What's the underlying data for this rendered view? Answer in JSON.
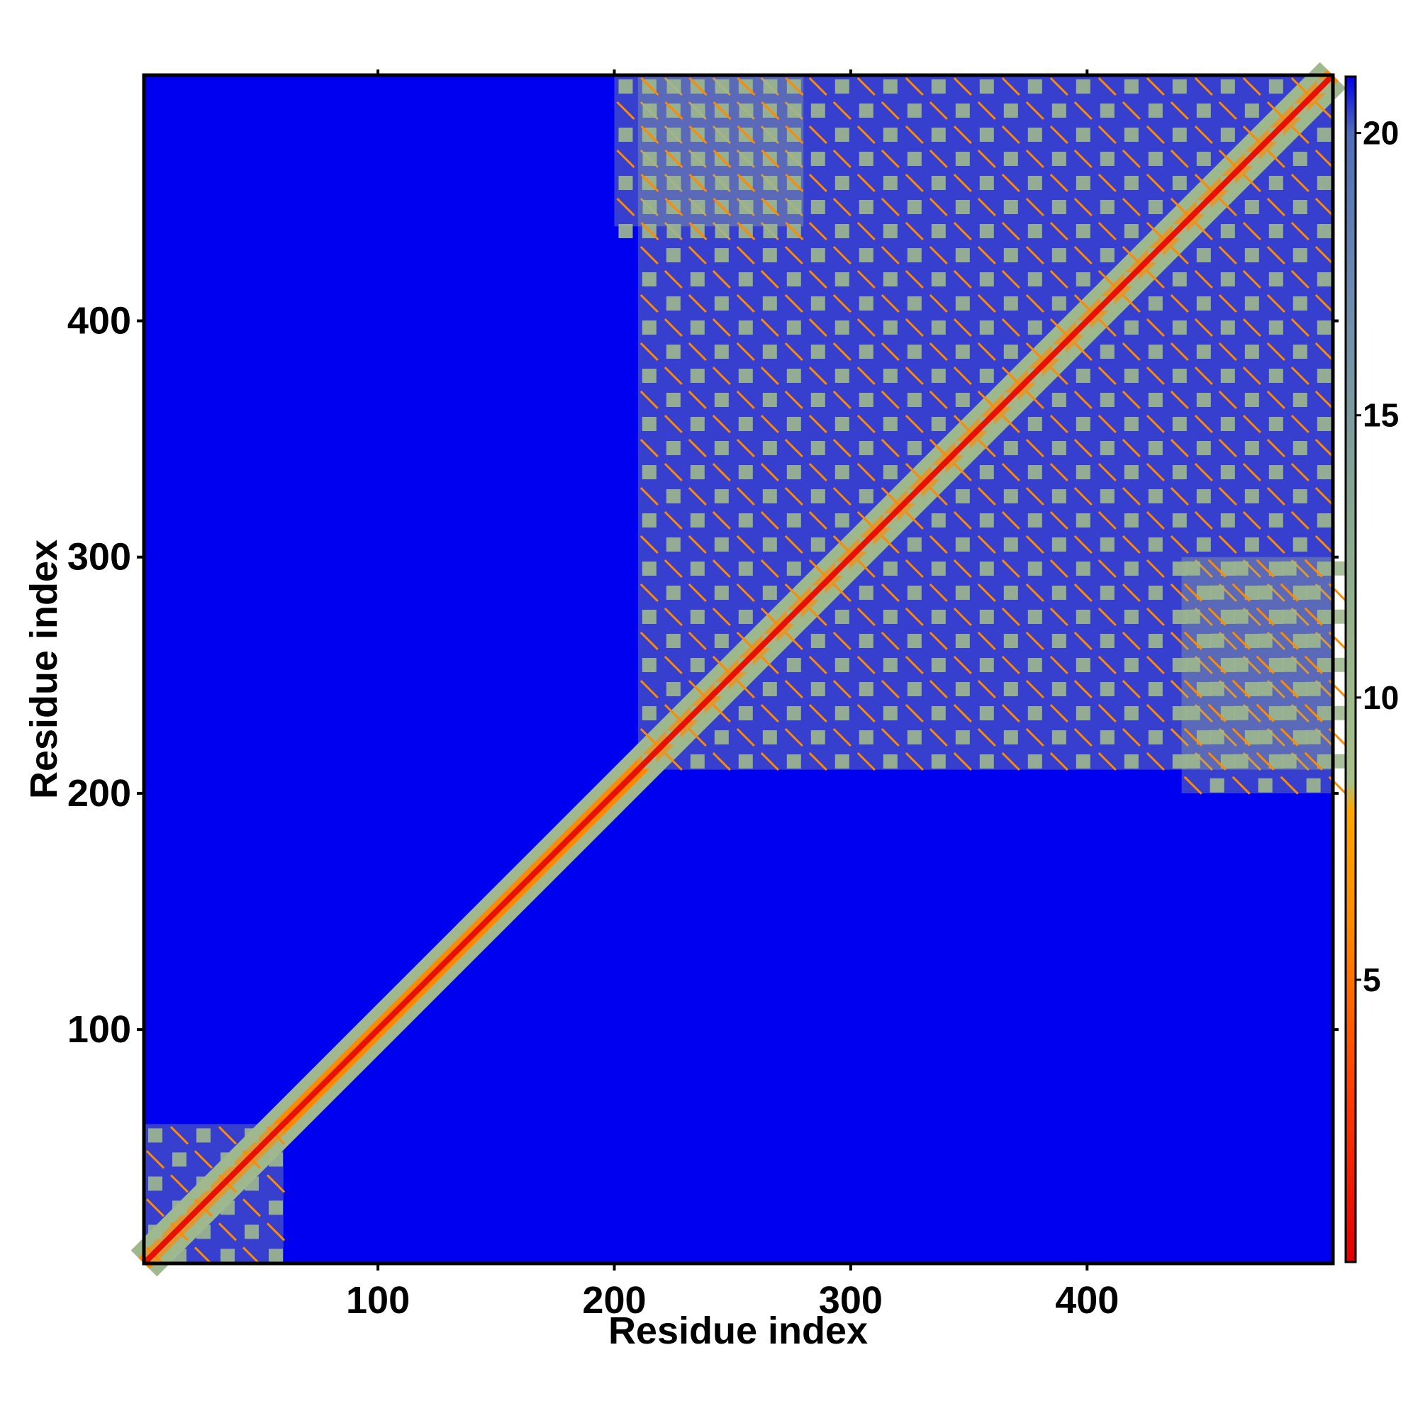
{
  "chart_data": {
    "type": "heatmap",
    "title": "",
    "xlabel": "Residue index",
    "ylabel": "Residue index",
    "xlim": [
      1,
      504
    ],
    "ylim": [
      1,
      504
    ],
    "xticks": [
      100,
      200,
      300,
      400
    ],
    "yticks": [
      100,
      200,
      300,
      400
    ],
    "grid": false,
    "colorbar": {
      "range": [
        0,
        21
      ],
      "ticks": [
        5,
        10,
        15,
        20
      ],
      "stops": [
        {
          "value": 0,
          "color": "#e00000"
        },
        {
          "value": 3,
          "color": "#ff3c00"
        },
        {
          "value": 6,
          "color": "#ff8a00"
        },
        {
          "value": 8,
          "color": "#ffa600"
        },
        {
          "value": 8.5,
          "color": "#a8c088"
        },
        {
          "value": 13,
          "color": "#8aaa8e"
        },
        {
          "value": 17,
          "color": "#6e8cae"
        },
        {
          "value": 20,
          "color": "#4f6db8"
        },
        {
          "value": 21,
          "color": "#0000ee"
        }
      ]
    },
    "background_color": "#0000f0",
    "contact_color": "#9fb88e",
    "close_color": "#ff8a00",
    "diagonal_color": "#e81000",
    "description_regions": {
      "diagonal_band": {
        "from": 1,
        "to": 504
      },
      "block_A": {
        "x": [
          1,
          60
        ],
        "y": [
          1,
          60
        ]
      },
      "block_B": {
        "x": [
          210,
          504
        ],
        "y": [
          210,
          504
        ]
      },
      "offdiag_top": {
        "x": [
          200,
          280
        ],
        "y": [
          440,
          504
        ]
      },
      "offdiag_right": {
        "x": [
          440,
          504
        ],
        "y": [
          200,
          300
        ]
      }
    }
  }
}
